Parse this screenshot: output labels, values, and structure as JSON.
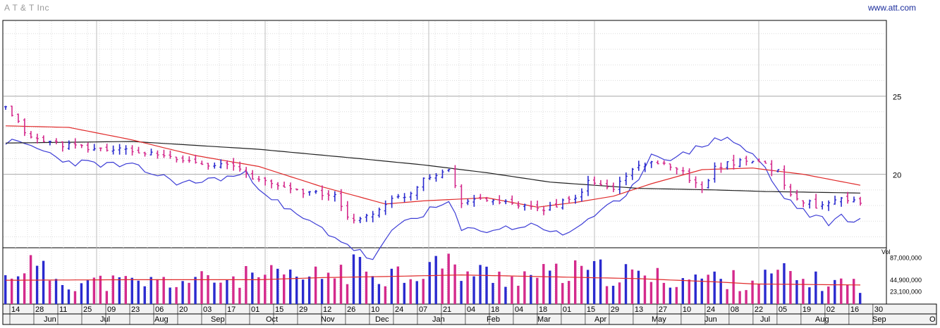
{
  "header": {
    "title": "A T & T Inc",
    "site": "www.att.com"
  },
  "colors": {
    "up": "#2a2acf",
    "down": "#d42a8c",
    "ma_short": "#e02b2b",
    "ma_long": "#222222",
    "relative": "#3d3dd6",
    "vol_ma": "#e02b2b"
  },
  "chart_data": {
    "type": "candlestick",
    "title": "A T & T Inc",
    "price_axis": {
      "ticks": [
        20,
        25
      ],
      "labels": [
        "20",
        "25"
      ],
      "ylim": [
        15.3,
        29.8
      ]
    },
    "volume_axis": {
      "label": "Vol",
      "ticks": [
        23100000,
        44900000,
        87000000
      ],
      "labels": [
        "23,100,000",
        "44,900,000",
        "87,000,000"
      ],
      "ylim": [
        0,
        105000000
      ]
    },
    "x_axis": {
      "day_labels": [
        "14",
        "28",
        "11",
        "25",
        "09",
        "23",
        "06",
        "20",
        "03",
        "17",
        "01",
        "15",
        "29",
        "12",
        "26",
        "10",
        "24",
        "07",
        "21",
        "04",
        "18",
        "04",
        "18",
        "01",
        "15",
        "29",
        "13",
        "27",
        "10",
        "24",
        "08",
        "22",
        "05",
        "19",
        "02",
        "16",
        "30"
      ],
      "month_labels": [
        "Jun",
        "Jul",
        "Aug",
        "Sep",
        "Oct",
        "Nov",
        "Dec",
        "Jan",
        "Feb",
        "Mar",
        "Apr",
        "May",
        "Jun",
        "Jul",
        "Aug",
        "Sep",
        "O"
      ]
    },
    "price_anchors": [
      [
        0,
        24.2
      ],
      [
        4,
        22.3
      ],
      [
        12,
        21.7
      ],
      [
        20,
        21.5
      ],
      [
        28,
        20.9
      ],
      [
        36,
        20.5
      ],
      [
        40,
        19.6
      ],
      [
        46,
        19.0
      ],
      [
        52,
        18.6
      ],
      [
        54,
        17.1
      ],
      [
        58,
        17.4
      ],
      [
        60,
        18.2
      ],
      [
        64,
        18.8
      ],
      [
        66,
        19.8
      ],
      [
        70,
        20.3
      ],
      [
        72,
        18.3
      ],
      [
        76,
        18.4
      ],
      [
        84,
        17.7
      ],
      [
        88,
        18.2
      ],
      [
        90,
        18.4
      ],
      [
        92,
        19.5
      ],
      [
        96,
        19.1
      ],
      [
        100,
        20.7
      ],
      [
        106,
        20.5
      ],
      [
        110,
        19.0
      ],
      [
        112,
        20.5
      ],
      [
        118,
        21.0
      ],
      [
        122,
        20.2
      ],
      [
        124,
        18.6
      ],
      [
        128,
        18.0
      ],
      [
        132,
        18.6
      ],
      [
        135,
        18.1
      ]
    ],
    "relative_line": [
      [
        0,
        22.1
      ],
      [
        4,
        21.8
      ],
      [
        10,
        20.8
      ],
      [
        20,
        20.5
      ],
      [
        28,
        19.4
      ],
      [
        38,
        20.0
      ],
      [
        44,
        17.8
      ],
      [
        50,
        16.5
      ],
      [
        54,
        15.5
      ],
      [
        58,
        14.5
      ],
      [
        62,
        16.8
      ],
      [
        66,
        17.5
      ],
      [
        70,
        18.2
      ],
      [
        72,
        16.4
      ],
      [
        78,
        16.5
      ],
      [
        84,
        16.8
      ],
      [
        88,
        16.0
      ],
      [
        90,
        16.6
      ],
      [
        94,
        17.7
      ],
      [
        98,
        18.4
      ],
      [
        102,
        21.3
      ],
      [
        106,
        21.0
      ],
      [
        110,
        21.9
      ],
      [
        114,
        22.4
      ],
      [
        118,
        21.2
      ],
      [
        120,
        20.4
      ],
      [
        122,
        18.9
      ],
      [
        126,
        17.6
      ],
      [
        130,
        16.9
      ],
      [
        132,
        17.3
      ],
      [
        135,
        17.0
      ]
    ],
    "ma_short": [
      [
        0,
        23.1
      ],
      [
        10,
        23.0
      ],
      [
        20,
        22.2
      ],
      [
        30,
        21.2
      ],
      [
        40,
        20.5
      ],
      [
        50,
        19.2
      ],
      [
        60,
        18.1
      ],
      [
        66,
        18.3
      ],
      [
        76,
        18.5
      ],
      [
        84,
        17.9
      ],
      [
        90,
        18.2
      ],
      [
        96,
        18.6
      ],
      [
        102,
        19.4
      ],
      [
        110,
        20.3
      ],
      [
        118,
        20.4
      ],
      [
        126,
        20.0
      ],
      [
        135,
        19.3
      ]
    ],
    "ma_long": [
      [
        0,
        22.0
      ],
      [
        20,
        22.1
      ],
      [
        40,
        21.6
      ],
      [
        56,
        21.0
      ],
      [
        66,
        20.6
      ],
      [
        76,
        20.1
      ],
      [
        86,
        19.5
      ],
      [
        100,
        19.1
      ],
      [
        112,
        19.0
      ],
      [
        120,
        18.9
      ],
      [
        135,
        18.8
      ]
    ],
    "volume_profile": [
      [
        0,
        48
      ],
      [
        3,
        80
      ],
      [
        6,
        58
      ],
      [
        10,
        42
      ],
      [
        20,
        40
      ],
      [
        30,
        44
      ],
      [
        40,
        52
      ],
      [
        48,
        48
      ],
      [
        52,
        60
      ],
      [
        56,
        68
      ],
      [
        60,
        60
      ],
      [
        64,
        58
      ],
      [
        68,
        78
      ],
      [
        72,
        62
      ],
      [
        78,
        52
      ],
      [
        84,
        54
      ],
      [
        88,
        56
      ],
      [
        92,
        60
      ],
      [
        96,
        58
      ],
      [
        100,
        52
      ],
      [
        104,
        48
      ],
      [
        110,
        50
      ],
      [
        116,
        44
      ],
      [
        120,
        48
      ],
      [
        122,
        58
      ],
      [
        126,
        45
      ],
      [
        130,
        40
      ],
      [
        135,
        38
      ]
    ],
    "volume_ma": [
      [
        0,
        45000000
      ],
      [
        20,
        46000000
      ],
      [
        40,
        46000000
      ],
      [
        50,
        50000000
      ],
      [
        60,
        52000000
      ],
      [
        72,
        55000000
      ],
      [
        84,
        52000000
      ],
      [
        100,
        48000000
      ],
      [
        112,
        42000000
      ],
      [
        118,
        38000000
      ],
      [
        135,
        36000000
      ]
    ]
  }
}
